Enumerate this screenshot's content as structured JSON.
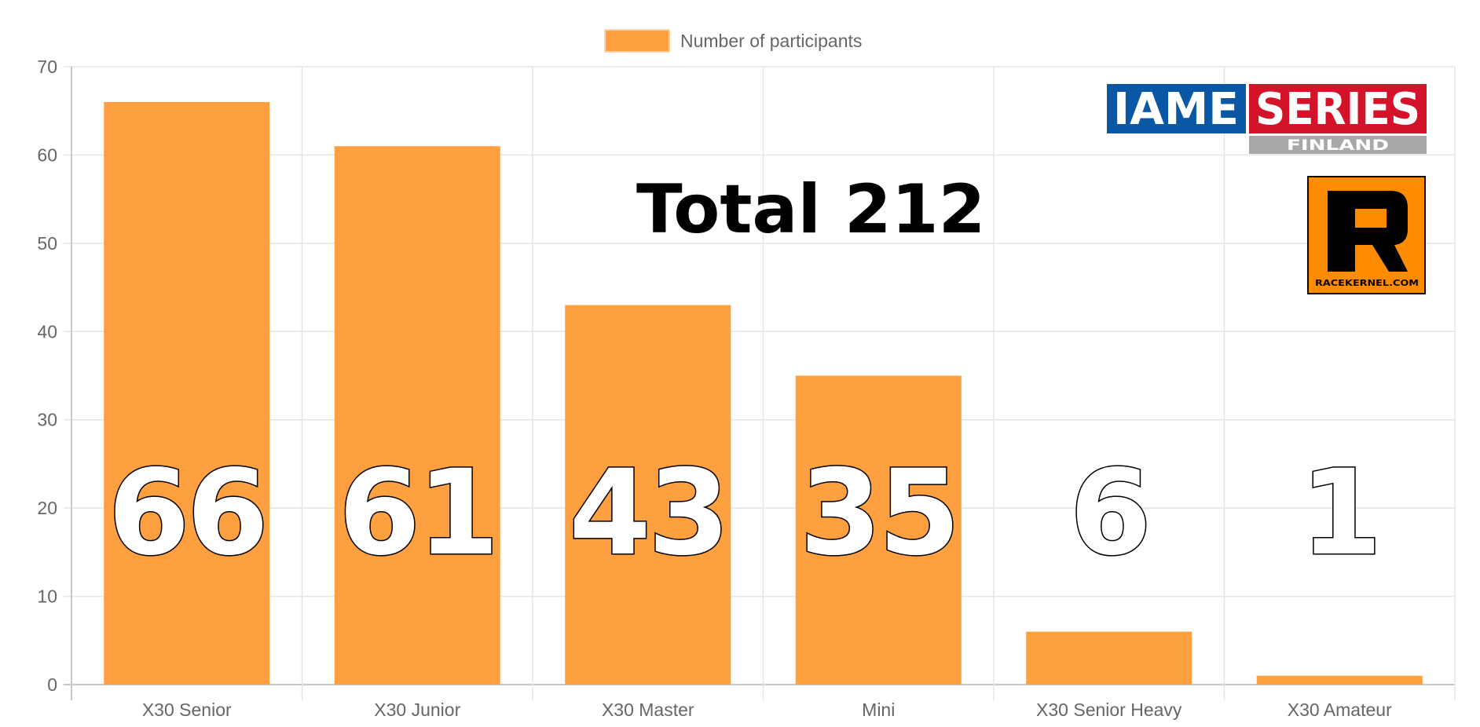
{
  "chart_data": {
    "type": "bar",
    "categories": [
      "X30 Senior",
      "X30 Junior",
      "X30 Master",
      "Mini",
      "X30 Senior Heavy",
      "X30 Amateur"
    ],
    "series": [
      {
        "name": "Number of participants",
        "values": [
          66,
          61,
          43,
          35,
          6,
          1
        ],
        "color": "#FFA040"
      }
    ],
    "data_labels": [
      "66",
      "61",
      "43",
      "35",
      "6",
      "1"
    ],
    "ylim": [
      0,
      70
    ],
    "yticks": [
      0,
      10,
      20,
      30,
      40,
      50,
      60,
      70
    ],
    "grid": true,
    "legend_position": "top-center",
    "annotation": "Total 212"
  },
  "logos": {
    "iame": "IAME",
    "series": "SERIES",
    "finland": "FINLAND",
    "racekernel_letter": "R",
    "racekernel_url": "RACEKERNEL.COM"
  },
  "colors": {
    "bar": "#FFA040",
    "grid": "#E5E5E5",
    "axis": "#C8C8C8",
    "iame_blue": "#0A58A5",
    "series_red": "#D4122A",
    "finland_gray": "#A8A8A8",
    "racekernel_orange": "#FF8C00"
  }
}
